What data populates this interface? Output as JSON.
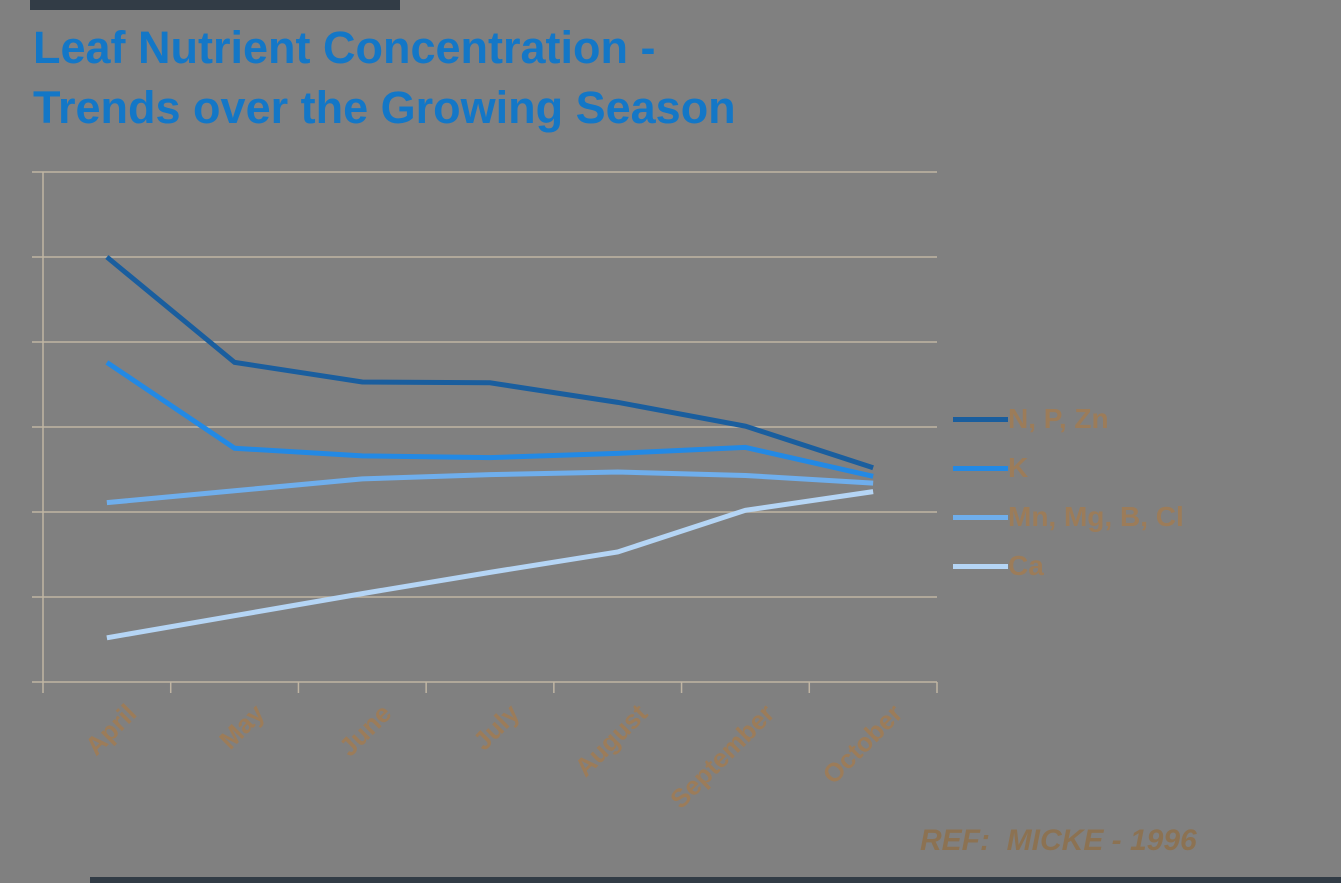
{
  "title": {
    "line1": "Leaf Nutrient Concentration -",
    "line2": "Trends over the Growing Season"
  },
  "ref_note": "REF:  MICKE - 1996",
  "colors": {
    "background": "#808080",
    "title_text": "#1377C7",
    "gridlines": "#C0B5A3",
    "axis_label_text": "#9C7C59",
    "legend_text": "#9C7C59",
    "ref_text": "#8C7252",
    "edge_bar": "#323C46"
  },
  "chart_data": {
    "type": "line",
    "title": "Leaf Nutrient Concentration - Trends over the Growing Season",
    "categories": [
      "April",
      "May",
      "June",
      "July",
      "August",
      "September",
      "October"
    ],
    "series": [
      {
        "name": "N, P, Zn",
        "color": "#1A5E9E",
        "values": [
          5.0,
          3.76,
          3.53,
          3.52,
          3.29,
          3.01,
          2.52
        ]
      },
      {
        "name": "K",
        "color": "#2389E4",
        "values": [
          3.76,
          2.75,
          2.66,
          2.64,
          2.69,
          2.76,
          2.42
        ]
      },
      {
        "name": "Mn, Mg, B, Cl",
        "color": "#6FAEEC",
        "values": [
          2.11,
          2.25,
          2.39,
          2.44,
          2.47,
          2.43,
          2.34
        ]
      },
      {
        "name": "Ca",
        "color": "#B5D5F5",
        "values": [
          0.52,
          0.78,
          1.04,
          1.29,
          1.53,
          2.02,
          2.24
        ]
      }
    ],
    "xlabel": "",
    "ylabel": "",
    "ylim": [
      0,
      6
    ],
    "y_gridline_count": 7,
    "y_tick_labels_visible": false,
    "x_label_rotation_deg": 45,
    "legend_position": "right-middle",
    "grid": "horizontal-only"
  }
}
